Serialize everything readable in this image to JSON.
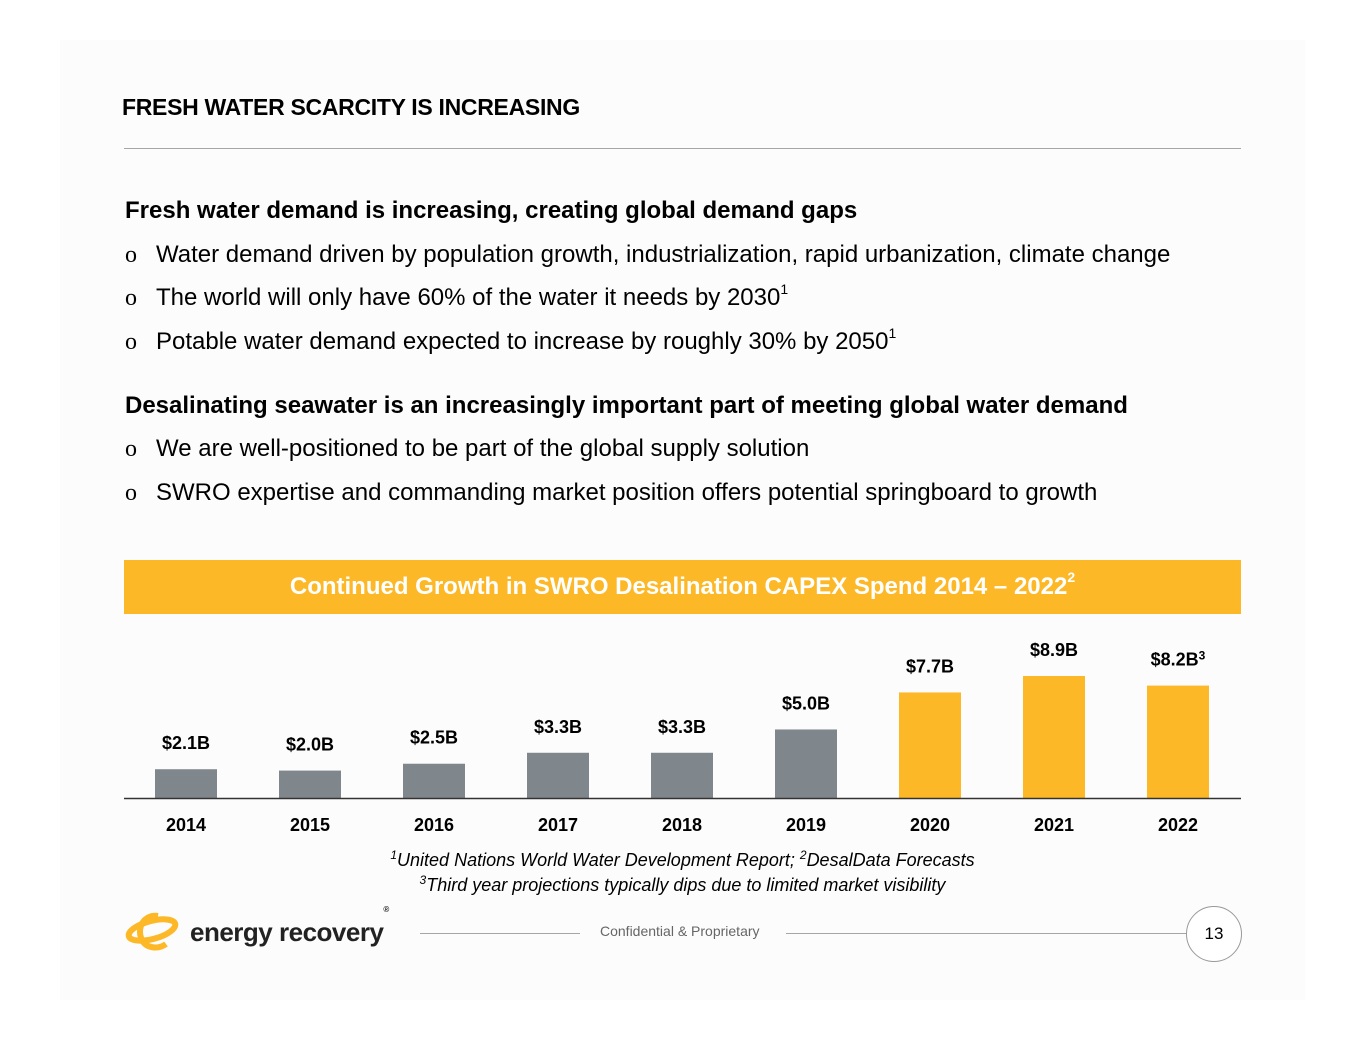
{
  "header": {
    "title": "FRESH WATER SCARCITY IS INCREASING"
  },
  "section1": {
    "heading": "Fresh water demand is increasing, creating global demand gaps",
    "bullets": [
      {
        "text": "Water demand driven by population growth, industrialization, rapid urbanization, climate change",
        "sup": ""
      },
      {
        "text": "The world will only have 60% of the water it needs by 2030",
        "sup": "1"
      },
      {
        "text": "Potable water demand expected to increase by roughly 30% by 2050",
        "sup": "1"
      }
    ]
  },
  "section2": {
    "heading": "Desalinating seawater is an increasingly important part of meeting global water demand",
    "bullets": [
      {
        "text": "We are well-positioned to be part of the global supply solution",
        "sup": ""
      },
      {
        "text": "SWRO expertise and commanding market position offers potential springboard to growth",
        "sup": ""
      }
    ]
  },
  "bullet_marker": "o",
  "chart_data": {
    "type": "bar",
    "title": "Continued Growth in SWRO Desalination CAPEX Spend 2014 – 2022",
    "title_sup": "2",
    "categories": [
      "2014",
      "2015",
      "2016",
      "2017",
      "2018",
      "2019",
      "2020",
      "2021",
      "2022"
    ],
    "values": [
      2.1,
      2.0,
      2.5,
      3.3,
      3.3,
      5.0,
      7.7,
      8.9,
      8.2
    ],
    "data_labels": [
      "$2.1B",
      "$2.0B",
      "$2.5B",
      "$3.3B",
      "$3.3B",
      "$5.0B",
      "$7.7B",
      "$8.9B",
      "$8.2B"
    ],
    "data_label_sups": [
      "",
      "",
      "",
      "",
      "",
      "",
      "",
      "",
      "3"
    ],
    "colors": [
      "#7f878c",
      "#7f878c",
      "#7f878c",
      "#7f878c",
      "#7f878c",
      "#7f878c",
      "#fdb827",
      "#fdb827",
      "#fdb827"
    ],
    "ylim": [
      0,
      9
    ],
    "unit": "$B",
    "grid": false,
    "xlabel": "",
    "ylabel": ""
  },
  "notes": {
    "line1_sup1": "1",
    "line1_a": "United Nations World Water Development Report; ",
    "line1_sup2": "2",
    "line1_b": "DesalData Forecasts",
    "line2_sup": "3",
    "line2": "Third year projections typically dips due to limited market visibility"
  },
  "footer": {
    "logo_text": "energy recovery",
    "logo_mark": "®",
    "confidential": "Confidential & Proprietary",
    "page": "13"
  },
  "colors": {
    "accent": "#fdb827",
    "gray_bar": "#7f878c"
  }
}
